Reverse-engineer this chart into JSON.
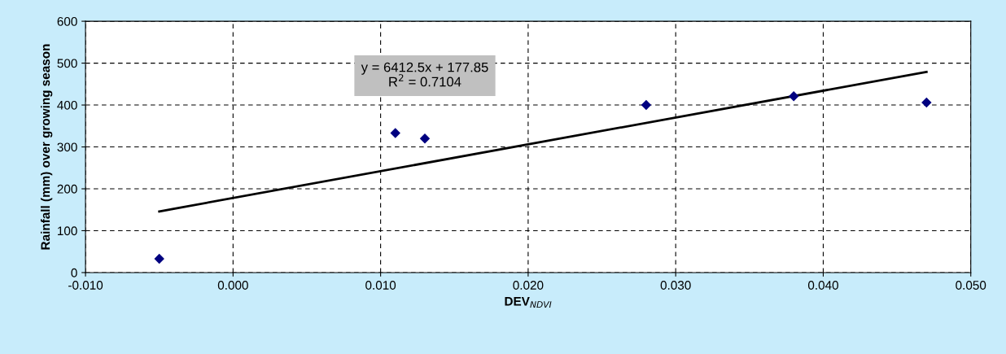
{
  "chart_data": {
    "type": "scatter",
    "xlabel": "DEV$_{NDVI}$",
    "ylabel": "Rainfall (mm) over growing season",
    "xlim": [
      -0.01,
      0.05
    ],
    "xticks": [
      {
        "value": -0.01,
        "label": "-0.010"
      },
      {
        "value": 0,
        "label": "0.000"
      },
      {
        "value": 0.01,
        "label": "0.010"
      },
      {
        "value": 0.02,
        "label": "0.020"
      },
      {
        "value": 0.03,
        "label": "0.030"
      },
      {
        "value": 0.04,
        "label": "0.040"
      },
      {
        "value": 0.05,
        "label": "0.050"
      }
    ],
    "ylim": [
      0,
      600
    ],
    "yticks": [
      0,
      100,
      200,
      300,
      400,
      500,
      600
    ],
    "grid": true,
    "marker": "diamond",
    "series": [
      {
        "color": "#000080",
        "x": [
          -0.005,
          0.011,
          0.013,
          0.028,
          0.038,
          0.047
        ],
        "values": [
          33,
          333,
          320,
          400,
          421,
          406
        ]
      },
      {
        "type": "line",
        "color": "#000000",
        "marker": "none",
        "x": [
          -0.005,
          0.047
        ],
        "values": [
          146,
          479
        ]
      }
    ],
    "annotations": [
      "y = 6412.5x + 177.85\nR$^{2}$ = 0.7104"
    ]
  }
}
